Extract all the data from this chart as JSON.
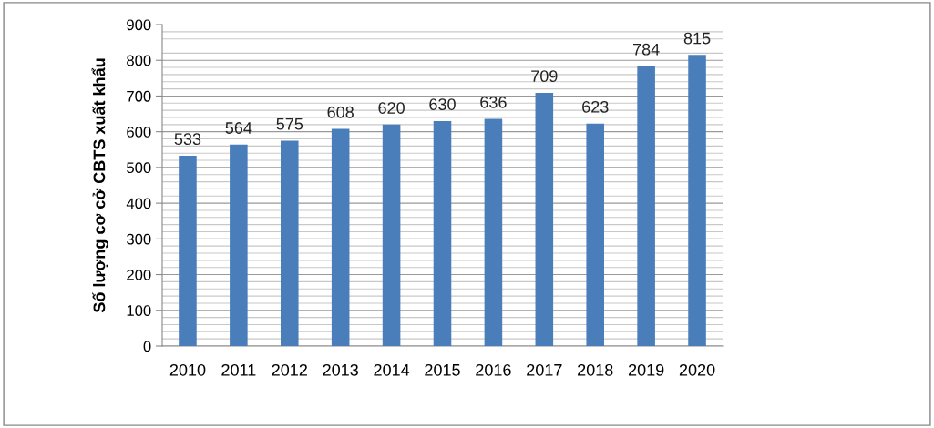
{
  "chart_data": {
    "type": "bar",
    "ylabel": "Số lượng cơ cở CBTS xuất khẩu",
    "categories": [
      "2010",
      "2011",
      "2012",
      "2013",
      "2014",
      "2015",
      "2016",
      "2017",
      "2018",
      "2019",
      "2020"
    ],
    "values": [
      533,
      564,
      575,
      608,
      620,
      630,
      636,
      709,
      623,
      784,
      815
    ],
    "color": "#4a7ebb",
    "ylim": [
      0,
      900
    ],
    "yticks": [
      0,
      100,
      200,
      300,
      400,
      500,
      600,
      700,
      800,
      900
    ],
    "grid": "y",
    "data_labels": true
  }
}
